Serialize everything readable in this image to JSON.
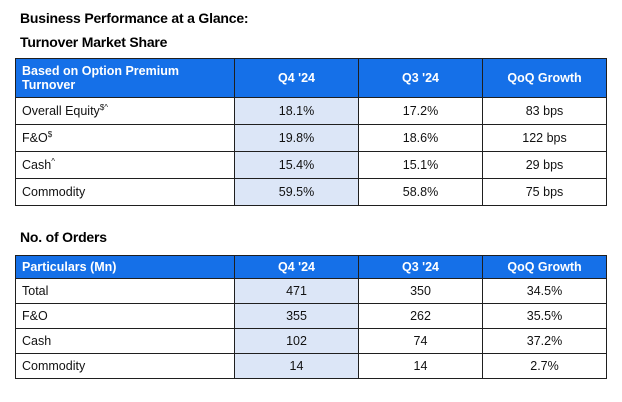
{
  "heading": "Business Performance  at a Glance:",
  "market_share": {
    "title": "Turnover Market Share",
    "columns": [
      "Based on Option Premium Turnover",
      "Q4 '24",
      "Q3 '24",
      "QoQ Growth"
    ],
    "rows": [
      {
        "label": "Overall Equity",
        "sup": "$^",
        "q4": "18.1%",
        "q3": "17.2%",
        "growth": "83 bps"
      },
      {
        "label": "F&O",
        "sup": "$",
        "q4": "19.8%",
        "q3": "18.6%",
        "growth": "122 bps"
      },
      {
        "label": "Cash",
        "sup": "^",
        "q4": "15.4%",
        "q3": "15.1%",
        "growth": "29 bps"
      },
      {
        "label": "Commodity",
        "sup": "",
        "q4": "59.5%",
        "q3": "58.8%",
        "growth": "75 bps"
      }
    ]
  },
  "orders": {
    "title": "No. of Orders",
    "columns": [
      "Particulars (Mn)",
      "Q4 '24",
      "Q3 '24",
      "QoQ Growth"
    ],
    "rows": [
      {
        "label": "Total",
        "q4": "471",
        "q3": "350",
        "growth": "34.5%"
      },
      {
        "label": "F&O",
        "q4": "355",
        "q3": "262",
        "growth": "35.5%"
      },
      {
        "label": "Cash",
        "q4": "102",
        "q3": "74",
        "growth": "37.2%"
      },
      {
        "label": "Commodity",
        "q4": "14",
        "q3": "14",
        "growth": "2.7%"
      }
    ]
  },
  "colors": {
    "header_bg": "#1570e8",
    "highlight": "#dce6f7"
  }
}
